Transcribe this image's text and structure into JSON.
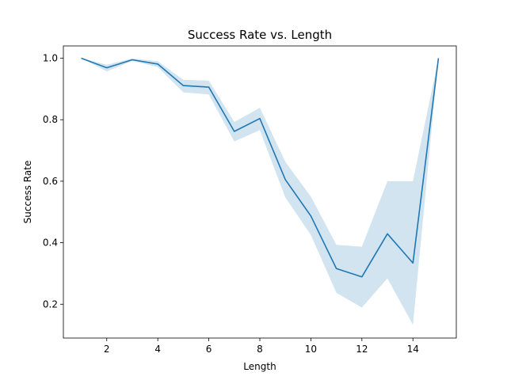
{
  "chart_data": {
    "type": "line",
    "title": "Success Rate vs. Length",
    "xlabel": "Length",
    "ylabel": "Success Rate",
    "xlim": [
      0.3,
      15.7
    ],
    "ylim": [
      0.09,
      1.04
    ],
    "x_ticks": [
      2,
      4,
      6,
      8,
      10,
      12,
      14
    ],
    "y_ticks": [
      0.2,
      0.4,
      0.6,
      0.8,
      1.0
    ],
    "x_tick_labels": [
      "2",
      "4",
      "6",
      "8",
      "10",
      "12",
      "14"
    ],
    "y_tick_labels": [
      "0.2",
      "0.4",
      "0.6",
      "0.8",
      "1.0"
    ],
    "grid": false,
    "colors": {
      "line": "#1f77b4",
      "band": "#1f77b4"
    },
    "series": [
      {
        "x": [
          1,
          2,
          3,
          4,
          5,
          6,
          7,
          8,
          9,
          10,
          11,
          12,
          13,
          14,
          15
        ],
        "y": [
          1.0,
          0.969,
          0.995,
          0.981,
          0.911,
          0.906,
          0.762,
          0.804,
          0.605,
          0.487,
          0.316,
          0.289,
          0.429,
          0.334,
          1.0
        ],
        "ci_lower": [
          1.0,
          0.957,
          0.991,
          0.971,
          0.889,
          0.882,
          0.729,
          0.766,
          0.547,
          0.425,
          0.237,
          0.189,
          0.284,
          0.133,
          1.0
        ],
        "ci_upper": [
          1.0,
          0.979,
          0.999,
          0.99,
          0.93,
          0.927,
          0.793,
          0.839,
          0.663,
          0.55,
          0.393,
          0.387,
          0.6,
          0.6,
          1.0
        ]
      }
    ]
  }
}
